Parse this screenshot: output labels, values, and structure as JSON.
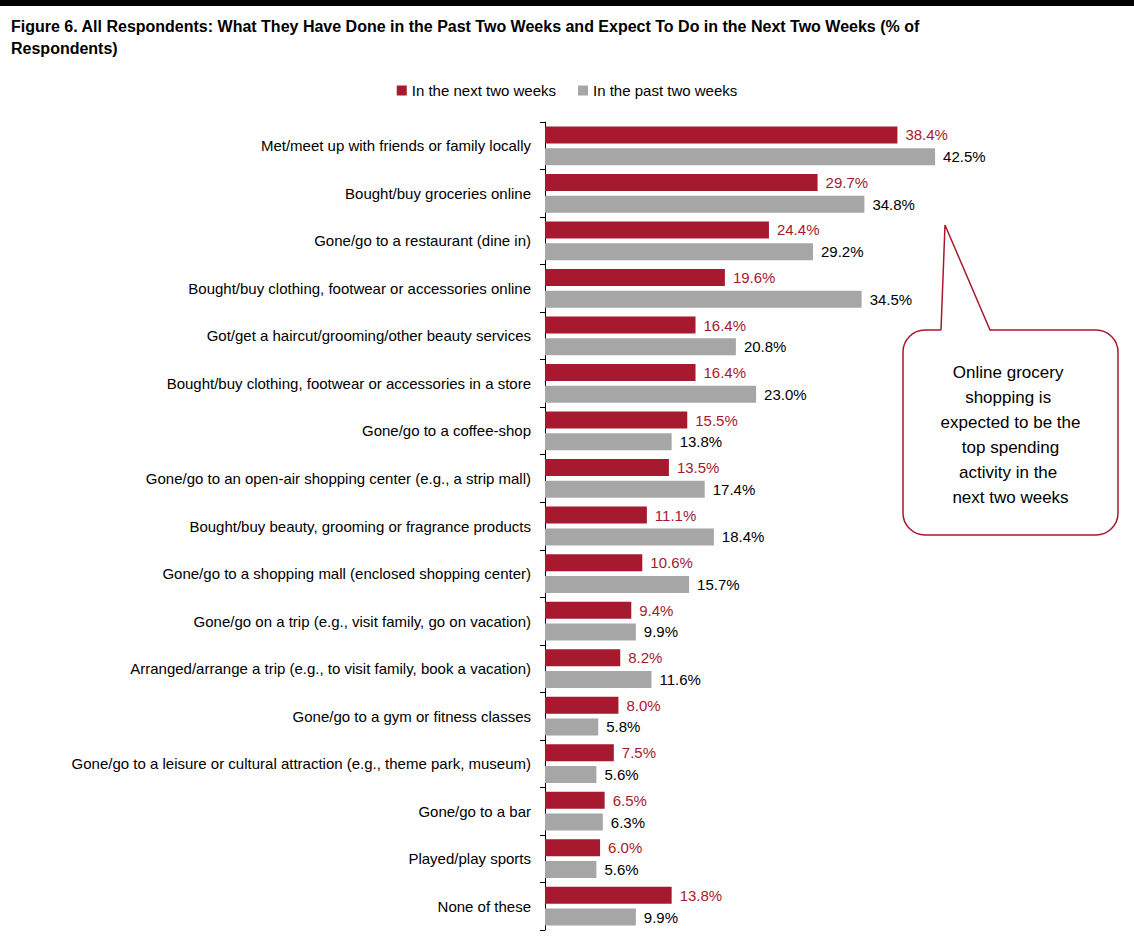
{
  "chart_data": {
    "type": "bar",
    "title": "Figure 6. All Respondents: What They Have Done in the Past Two Weeks and Expect To Do in the Next Two Weeks (% of Respondents)",
    "orientation": "horizontal",
    "categories": [
      "Met/meet up with friends or family locally",
      "Bought/buy groceries online",
      "Gone/go to a restaurant (dine in)",
      "Bought/buy clothing, footwear or accessories online",
      "Got/get a haircut/grooming/other beauty services",
      "Bought/buy clothing, footwear or accessories in a store",
      "Gone/go to a coffee-shop",
      "Gone/go to an open-air shopping center (e.g., a strip mall)",
      "Bought/buy beauty, grooming or fragrance products",
      "Gone/go to a shopping mall (enclosed shopping center)",
      "Gone/go on a trip (e.g., visit family, go on vacation)",
      "Arranged/arrange a trip (e.g., to visit family, book a vacation)",
      "Gone/go to a gym or fitness classes",
      "Gone/go to a leisure or cultural attraction (e.g., theme park, museum)",
      "Gone/go to a bar",
      "Played/play sports",
      "None of these"
    ],
    "series": [
      {
        "name": "In the next two weeks",
        "color": "#a6192e",
        "values": [
          38.4,
          29.7,
          24.4,
          19.6,
          16.4,
          16.4,
          15.5,
          13.5,
          11.1,
          10.6,
          9.4,
          8.2,
          8.0,
          7.5,
          6.5,
          6.0,
          13.8
        ],
        "value_labels": [
          "38.4%",
          "29.7%",
          "24.4%",
          "19.6%",
          "16.4%",
          "16.4%",
          "15.5%",
          "13.5%",
          "11.1%",
          "10.6%",
          "9.4%",
          "8.2%",
          "8.0%",
          "7.5%",
          "6.5%",
          "6.0%",
          "13.8%"
        ]
      },
      {
        "name": "In the past two weeks",
        "color": "#a6a6a6",
        "values": [
          42.5,
          34.8,
          29.2,
          34.5,
          20.8,
          23.0,
          13.8,
          17.4,
          18.4,
          15.7,
          9.9,
          11.6,
          5.8,
          5.6,
          6.3,
          5.6,
          9.9
        ],
        "value_labels": [
          "42.5%",
          "34.8%",
          "29.2%",
          "34.5%",
          "20.8%",
          "23.0%",
          "13.8%",
          "17.4%",
          "18.4%",
          "15.7%",
          "9.9%",
          "11.6%",
          "5.8%",
          "5.6%",
          "6.3%",
          "5.6%",
          "9.9%"
        ]
      }
    ],
    "xlim": [
      0,
      45
    ],
    "grid": false,
    "legend": "top",
    "data_labels": true,
    "tick_labels": "y",
    "annotations": [
      {
        "text": "Online grocery shopping is expected to be the top spending activity in the next two weeks"
      }
    ]
  }
}
